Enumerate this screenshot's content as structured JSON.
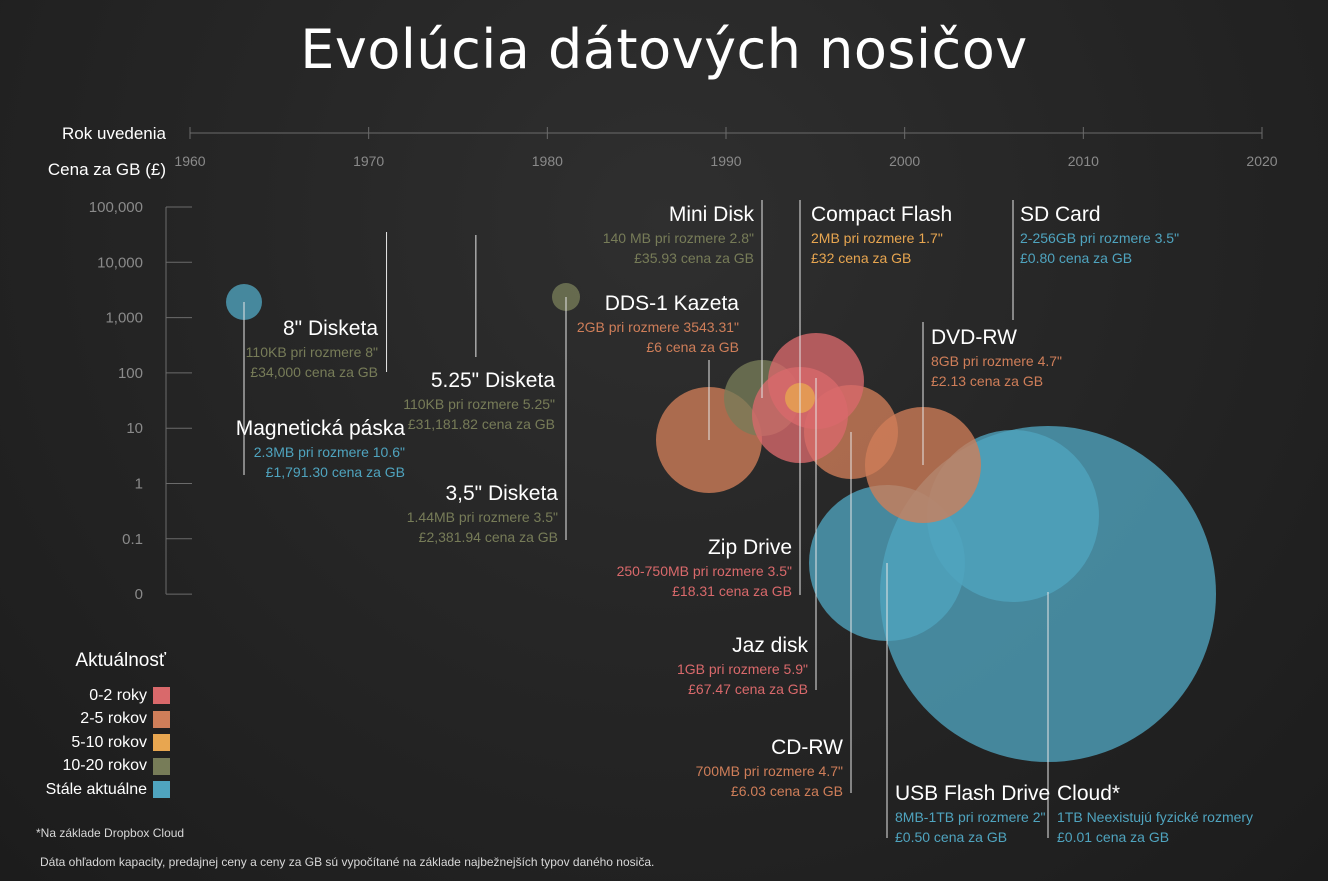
{
  "title": "Evolúcia dátových nosičov",
  "axis": {
    "x_title": "Rok uvedenia",
    "y_title": "Cena za GB (£)"
  },
  "legend": {
    "title": "Aktuálnosť",
    "items": [
      {
        "label": "0-2 roky",
        "color": "#d9696b"
      },
      {
        "label": "2-5 rokov",
        "color": "#cf7e59"
      },
      {
        "label": "5-10 rokov",
        "color": "#e8a650"
      },
      {
        "label": "10-20 rokov",
        "color": "#777c58"
      },
      {
        "label": "Stále aktuálne",
        "color": "#4fa4bf"
      }
    ]
  },
  "footnotes": {
    "cloud_note": "*Na základe Dropbox Cloud",
    "data_note": "Dáta ohľadom kapacity, predajnej ceny a ceny za GB sú vypočítané na základe najbežnejších typov daného nosiča."
  },
  "chart_data": {
    "type": "scatter",
    "title": "Evolúcia dátových nosičov",
    "xlabel": "Rok uvedenia",
    "ylabel": "Cena za GB (£)",
    "xlim": [
      1960,
      2020
    ],
    "x_ticks": [
      "1960",
      "1970",
      "1980",
      "1990",
      "2000",
      "2010",
      "2020"
    ],
    "y_scale": "log",
    "y_ticks": [
      "100,000",
      "10,000",
      "1,000",
      "100",
      "10",
      "1",
      "0.1",
      "0"
    ],
    "legend_position": "bottom-left",
    "points": [
      {
        "name": "Magnetická páska",
        "year": 1963,
        "price": 1791.3,
        "capacity": "2.3MB",
        "size": "10.6\"",
        "status": "Stále aktuálne",
        "color": "#4fa4bf",
        "bubble": 18,
        "line1": "2.3MB pri rozmere 10.6\"",
        "line2": "£1,791.30 cena za GB"
      },
      {
        "name": "8\" Disketa",
        "year": 1971,
        "price": 34000,
        "capacity": "110KB",
        "size": "8\"",
        "status": "10-20 rokov",
        "color": "#777c58",
        "line1": "110KB pri rozmere 8\"",
        "line2": "£34,000 cena za GB"
      },
      {
        "name": "5.25\" Disketa",
        "year": 1976,
        "price": 31181.82,
        "capacity": "110KB",
        "size": "5.25\"",
        "status": "10-20 rokov",
        "color": "#777c58",
        "line1": "110KB pri rozmere 5.25\"",
        "line2": "£31,181.82 cena za GB"
      },
      {
        "name": "3,5\" Disketa",
        "year": 1981,
        "price": 2381.94,
        "capacity": "1.44MB",
        "size": "3.5\"",
        "status": "10-20 rokov",
        "color": "#777c58",
        "bubble": 14,
        "line1": "1.44MB pri rozmere 3.5\"",
        "line2": "£2,381.94  cena za GB"
      },
      {
        "name": "DDS-1 Kazeta",
        "year": 1989,
        "price": 6,
        "capacity": "2GB",
        "size": "3543.31\"",
        "status": "2-5 rokov",
        "color": "#cf7e59",
        "bubble": 53,
        "line1": "2GB pri rozmere 3543.31\"",
        "line2": "£6 cena za GB"
      },
      {
        "name": "Mini Disk",
        "year": 1992,
        "price": 35.93,
        "capacity": "140 MB",
        "size": "2.8\"",
        "status": "10-20 rokov",
        "color": "#777c58",
        "bubble": 38,
        "line1": "140 MB pri rozmere 2.8\"",
        "line2": "£35.93 cena za GB"
      },
      {
        "name": "Zip Drive",
        "year": 1994,
        "price": 18.31,
        "capacity": "250-750MB",
        "size": "3.5\"",
        "status": "0-2 roky",
        "color": "#d9696b",
        "bubble": 48,
        "line1": "250-750MB pri rozmere 3.5\"",
        "line2": "£18.31 cena za GB"
      },
      {
        "name": "Compact Flash",
        "year": 1994,
        "price": 32,
        "capacity": "2MB",
        "size": "1.7\"",
        "status": "5-10 rokov",
        "color": "#e8a650",
        "bubble": 15,
        "line1": "2MB pri rozmere 1.7\"",
        "line2": "£32 cena za GB"
      },
      {
        "name": "Jaz disk",
        "year": 1995,
        "price": 67.47,
        "capacity": "1GB",
        "size": "5.9\"",
        "status": "0-2 roky",
        "color": "#d9696b",
        "bubble": 48,
        "line1": "1GB pri rozmere 5.9\"",
        "line2": "£67.47 cena za GB"
      },
      {
        "name": "CD-RW",
        "year": 1997,
        "price": 6.03,
        "capacity": "700MB",
        "size": "4.7\"",
        "status": "2-5 rokov",
        "color": "#cf7e59",
        "bubble": 47,
        "line1": "700MB pri rozmere 4.7\"",
        "line2": "£6.03 cena za GB"
      },
      {
        "name": "USB Flash Drive",
        "year": 1999,
        "price": 0.5,
        "capacity": "8MB-1TB",
        "size": "2\"",
        "status": "Stále aktuálne",
        "color": "#4fa4bf",
        "bubble": 78,
        "line1": "8MB-1TB pri rozmere 2\"",
        "line2": "£0.50 cena za GB"
      },
      {
        "name": "DVD-RW",
        "year": 2001,
        "price": 2.13,
        "capacity": "8GB",
        "size": "4.7\"",
        "status": "2-5 rokov",
        "color": "#cf7e59",
        "bubble": 58,
        "line1": "8GB pri rozmere 4.7\"",
        "line2": "£2.13 cena za GB"
      },
      {
        "name": "SD Card",
        "year": 2006,
        "price": 0.8,
        "capacity": "2-256GB",
        "size": "3.5\"",
        "status": "Stále aktuálne",
        "color": "#4fa4bf",
        "bubble": 86,
        "line1": "2-256GB pri rozmere 3.5\"",
        "line2": "£0.80 cena za GB"
      },
      {
        "name": "Cloud*",
        "year": 2008,
        "price": 0.01,
        "capacity": "1TB",
        "size": "Neexistujú fyzické rozmery",
        "status": "Stále aktuálne",
        "color": "#4fa4bf",
        "bubble": 168,
        "line1": "1TB Neexistujú fyzické rozmery",
        "line2": "£0.01 cena za GB"
      }
    ]
  }
}
